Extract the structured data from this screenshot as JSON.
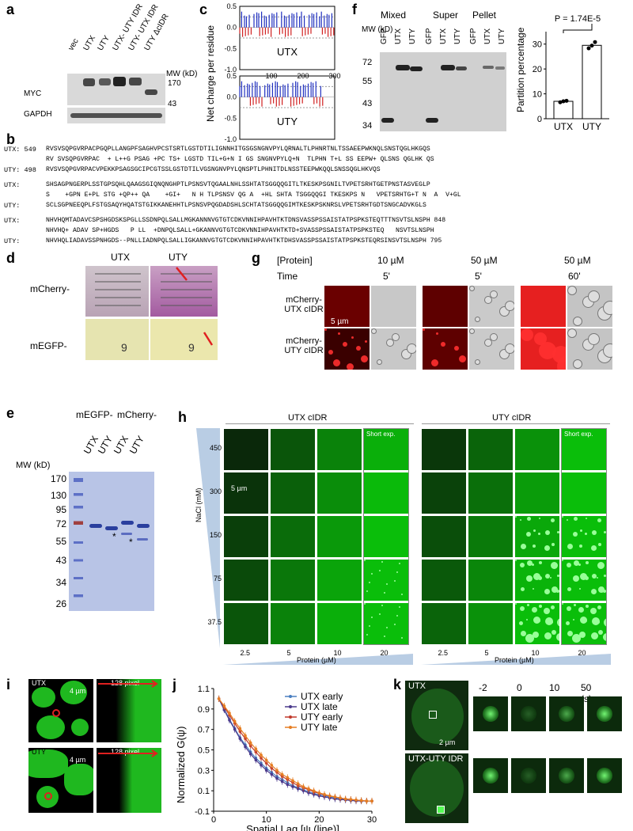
{
  "panels": {
    "a": "a",
    "b": "b",
    "c": "c",
    "d": "d",
    "e": "e",
    "f": "f",
    "g": "g",
    "h": "h",
    "i": "i",
    "j": "j",
    "k": "k"
  },
  "panel_a": {
    "lanes": [
      "vec",
      "UTX",
      "UTY",
      "UTX- UTY IDR",
      "UTY- UTX IDR",
      "UTY ΔcIDR"
    ],
    "mw_unit": "MW (kD)",
    "markers": [
      "170",
      "43"
    ],
    "rows": [
      "MYC",
      "GAPDH"
    ]
  },
  "panel_b": {
    "lines": [
      {
        "label": "UTX: 549",
        "text": "RVSVSQPGVRPACPGQPLLANGPFSAGHVPCSTSRTLGSTDTILIGNNHITGSGSNGNVPYLQRNALTLPHNRTNLTSSAEEPWKNQLSNSTQGLHKGQS"
      },
      {
        "label": "",
        "text": "RV SVSQPGVRPAC  + L++G PSAG +PC TS+ LGSTD TIL+G+N I GS SNGNVPYLQ+N  TLPHN T+L SS EEPW+ QLSNS QGLHK QS"
      },
      {
        "label": "UTY: 498",
        "text": "RVSVSQPGVRPACVPEKKPSAGSGCIPCGTSSLGSTDTILVGSNGNVPYLQNSPTLPHNITDLNSSTEEPWKQQLSNSSQGLHKVQS"
      },
      {
        "label": "UTX:",
        "text": "SHSAGPNGERPLSSTGPSQHLQAAGSGIQNQNGHPTLPSNSVTQGAALNHLSSHTATSGGQQGITLTKESKPSGNILTVPETSRHTGETPNSTASVEGLP"
      },
      {
        "label": "",
        "text": "S    +GPN E+PL STG +QP++ QA    +GI+   N H TLPSNSV QG A  +HL SHTA TSGGQQGI TKESKPS N   VPETSRHTG+T N  A  V+GL"
      },
      {
        "label": "UTY:",
        "text": "SCLSGPNEEQPLFSTGSAQYHQATSTGIKKANEHHTLPSNSVPQGDADSHLSCHTATSGGQQGIMTKESKPSKNRSLVPETSRHTGDTSNGCADVKGLS"
      },
      {
        "label": "UTX:",
        "text": "NHVHQMTADAVCSPSHGDSKSPGLLSSDNPQLSALLMGKANNNVGTGTCDKVNNIHPAVHTKTDNSVASSPSSAISTATPSPKSTEQTTTNSVTSLNSPH 848"
      },
      {
        "label": "",
        "text": "NHVHQ+ ADAV SP+HGDS   P LL  +DNPQLSALL+GKANNVGTGTCDKVNNIHPAVHTKTD+SVASSPSSAISTATPSPKSTEQ   NSVTSLNSPH"
      },
      {
        "label": "UTY:",
        "text": "NHVHQLIADAVSSPNHGDS--PNLLIADNPQLSALLIGKANNVGTGTCDKVNNIHPAVHTKTDHSVASSPSSAISTATPSPKSTEQRSINSVTSLNSPH 795"
      }
    ]
  },
  "panel_c": {
    "ylabel": "Net charge per residue",
    "subplots": [
      {
        "name": "UTX",
        "yticks": [
          "0.5",
          "0.0",
          "-0.5",
          "-1.0"
        ],
        "xticks": [
          "100",
          "200",
          "300"
        ]
      },
      {
        "name": "UTY",
        "yticks": [
          "0.5",
          "0.0",
          "-0.5",
          "-1.0"
        ],
        "xticks": [
          "100",
          "200"
        ]
      }
    ]
  },
  "panel_d": {
    "cols": [
      "UTX",
      "UTY"
    ],
    "rows": [
      "mCherry-",
      "mEGFP-"
    ]
  },
  "panel_e": {
    "headers": [
      "mEGFP-",
      "mCherry-"
    ],
    "lanes": [
      "UTX",
      "UTY",
      "UTX",
      "UTY"
    ],
    "mw_unit": "MW (kD)",
    "markers": [
      "170",
      "130",
      "95",
      "72",
      "55",
      "43",
      "34",
      "26"
    ]
  },
  "panel_f": {
    "groups": [
      "Mixed",
      "Super",
      "Pellet"
    ],
    "lanes": [
      "GFP",
      "UTX",
      "UTY"
    ],
    "mw_unit": "MW (kD)",
    "markers": [
      "72",
      "55",
      "43",
      "34"
    ],
    "pvalue": "P = 1.74E-5",
    "bar_ylabel": "Partition percentage"
  },
  "panel_g": {
    "row_headers": [
      "[Protein]",
      "Time"
    ],
    "conc": [
      "10 µM",
      "50 µM",
      "50 µM"
    ],
    "time": [
      "5'",
      "5'",
      "60'"
    ],
    "rows": [
      "mCherry- UTX cIDR",
      "mCherry- UTY cIDR"
    ],
    "scale": "5 µm"
  },
  "panel_h": {
    "groups": [
      "UTX cIDR",
      "UTY cIDR"
    ],
    "nacl_label": "NaCl (mM)",
    "nacl": [
      "450",
      "300",
      "150",
      "75",
      "37.5"
    ],
    "protein": [
      "2.5",
      "5",
      "10",
      "20"
    ],
    "protein_label": "Protein (µM)",
    "short_exp": "Short exp.",
    "scale": "5 µm"
  },
  "panel_i": {
    "rows": [
      "UTX",
      "UTY"
    ],
    "scale": "4 µm",
    "pixel": "128 pixel"
  },
  "panel_j": {
    "ylabel": "Normalized G(ψ)",
    "xlabel": "Spatial Lag [ψ (line)]",
    "legend": [
      "UTX early",
      "UTX late",
      "UTY early",
      "UTY late"
    ],
    "colors": [
      "#4a7fc1",
      "#4b3a8c",
      "#c0392b",
      "#e67e22"
    ]
  },
  "panel_k": {
    "rows": [
      "UTX",
      "UTX-UTY IDR"
    ],
    "times": [
      "-2",
      "0",
      "10",
      "50 (s)"
    ],
    "scale": "2 µm"
  },
  "chart_data": [
    {
      "type": "bar",
      "categories": [
        "UTX",
        "UTY"
      ],
      "values": [
        7,
        29.5
      ],
      "points": [
        [
          6.6,
          7,
          7.2
        ],
        [
          28.3,
          29.4,
          30.8
        ]
      ],
      "ylabel": "Partition percentage",
      "ylim": [
        0,
        35
      ],
      "yticks": [
        0,
        10,
        20,
        30
      ],
      "annotation": "P = 1.74E-5"
    },
    {
      "type": "line",
      "x": [
        1,
        2,
        3,
        4,
        5,
        6,
        7,
        8,
        9,
        10,
        11,
        12,
        13,
        14,
        15,
        16,
        17,
        18,
        19,
        20,
        21,
        22,
        23,
        24,
        25,
        26,
        27,
        28,
        29,
        30
      ],
      "series": [
        {
          "name": "UTX early",
          "values": [
            1.0,
            0.9,
            0.8,
            0.71,
            0.62,
            0.55,
            0.48,
            0.42,
            0.37,
            0.32,
            0.28,
            0.24,
            0.21,
            0.18,
            0.15,
            0.13,
            0.11,
            0.09,
            0.075,
            0.06,
            0.05,
            0.04,
            0.03,
            0.02,
            0.015,
            0.01,
            0.005,
            0.0,
            0.0,
            0.0
          ]
        },
        {
          "name": "UTX late",
          "values": [
            1.0,
            0.89,
            0.79,
            0.7,
            0.61,
            0.53,
            0.46,
            0.4,
            0.35,
            0.3,
            0.26,
            0.22,
            0.19,
            0.16,
            0.14,
            0.12,
            0.1,
            0.08,
            0.065,
            0.05,
            0.04,
            0.03,
            0.02,
            0.015,
            0.01,
            0.005,
            0.0,
            0.0,
            0.0,
            0.0
          ]
        },
        {
          "name": "UTY early",
          "values": [
            1.0,
            0.92,
            0.84,
            0.76,
            0.68,
            0.61,
            0.54,
            0.48,
            0.42,
            0.37,
            0.32,
            0.28,
            0.24,
            0.21,
            0.18,
            0.15,
            0.13,
            0.11,
            0.09,
            0.075,
            0.06,
            0.05,
            0.04,
            0.03,
            0.02,
            0.015,
            0.01,
            0.005,
            0.0,
            0.0
          ]
        },
        {
          "name": "UTY late",
          "values": [
            1.0,
            0.93,
            0.86,
            0.78,
            0.71,
            0.64,
            0.57,
            0.51,
            0.45,
            0.4,
            0.35,
            0.3,
            0.26,
            0.23,
            0.2,
            0.17,
            0.14,
            0.12,
            0.1,
            0.08,
            0.065,
            0.05,
            0.04,
            0.03,
            0.02,
            0.015,
            0.01,
            0.005,
            0.0,
            0.0
          ]
        }
      ],
      "xlabel": "Spatial Lag [ψ (line)]",
      "ylabel": "Normalized G(ψ)",
      "xlim": [
        0,
        30
      ],
      "ylim": [
        -0.1,
        1.1
      ],
      "xticks": [
        0,
        10,
        20,
        30
      ],
      "yticks": [
        -0.1,
        0.1,
        0.3,
        0.5,
        0.7,
        0.9,
        1.1
      ]
    }
  ]
}
